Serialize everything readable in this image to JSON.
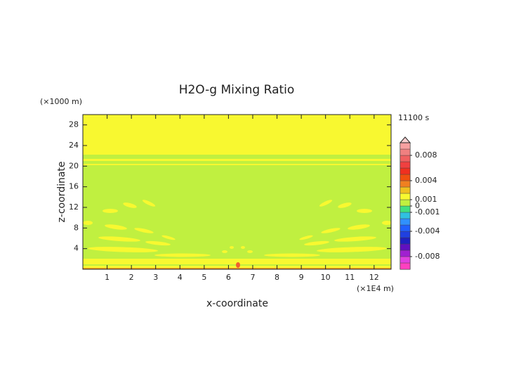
{
  "chart_data": {
    "type": "contour",
    "title": "H2O-g Mixing Ratio",
    "xlabel": "x-coordinate",
    "ylabel": "z-coordinate",
    "x_unit": "(×1E4 m)",
    "y_unit": "(×1000 m)",
    "time_label": "11100 s",
    "xlim": [
      0,
      12.7
    ],
    "ylim": [
      0,
      30
    ],
    "xticks": [
      1,
      2,
      3,
      4,
      5,
      6,
      7,
      8,
      9,
      10,
      11,
      12
    ],
    "yticks": [
      4,
      8,
      12,
      16,
      20,
      24,
      28
    ],
    "colorbar": {
      "levels": [
        -0.01,
        -0.009,
        -0.008,
        -0.007,
        -0.006,
        -0.005,
        -0.004,
        -0.003,
        -0.002,
        -0.001,
        0,
        0.001,
        0.002,
        0.003,
        0.004,
        0.005,
        0.006,
        0.007,
        0.008,
        0.009,
        0.01
      ],
      "colors": [
        "#ff40c0",
        "#e040e0",
        "#a020d0",
        "#6010c0",
        "#2020c0",
        "#2040e0",
        "#2060ff",
        "#3090ff",
        "#30c0e0",
        "#40e080",
        "#c0f040",
        "#f8f830",
        "#f0c020",
        "#f08020",
        "#f05010",
        "#f03020",
        "#f04040",
        "#f06060",
        "#f08080",
        "#f8a0a0"
      ],
      "extend_color": "#fbd0d0",
      "ticks": [
        0.008,
        0.004,
        0.001,
        0,
        -0.001,
        -0.004,
        -0.008
      ]
    }
  }
}
